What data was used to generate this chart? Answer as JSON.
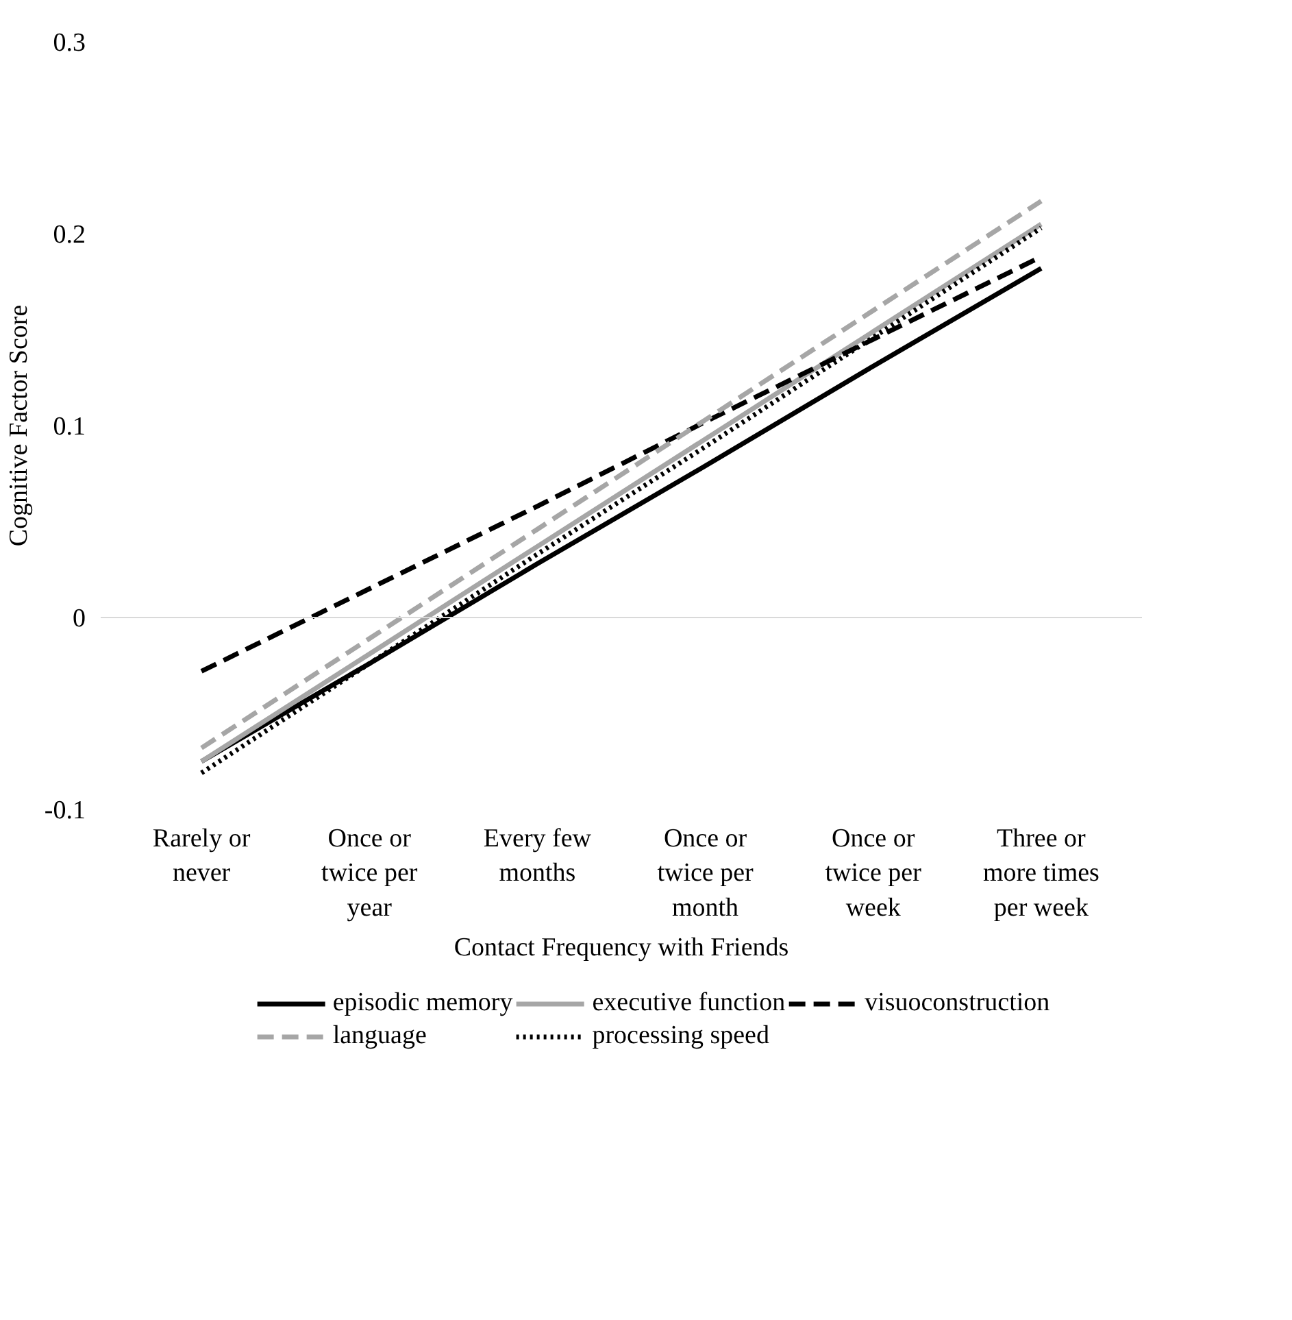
{
  "chart_data": {
    "type": "line",
    "xlabel": "Contact Frequency with Friends",
    "ylabel": "Cognitive Factor Score",
    "categories": [
      "Rarely or never",
      "Once or twice per year",
      "Every few months",
      "Once or twice per month",
      "Once or twice per week",
      "Three or more times per week"
    ],
    "ylim": [
      -0.1,
      0.3
    ],
    "yticks": [
      {
        "value": -0.1,
        "label": "-0.1"
      },
      0,
      0.1,
      0.2,
      0.3
    ],
    "grid": false,
    "legend": "bottom",
    "marker": "none",
    "ref_lines": [
      {
        "axis": "y",
        "value": 0,
        "color": "#d9d9d9"
      }
    ],
    "series": [
      {
        "name": "episodic memory",
        "color": "#000000",
        "line_style": "solid",
        "values": [
          -0.075,
          -0.024,
          0.028,
          0.079,
          0.131,
          0.182
        ]
      },
      {
        "name": "executive function",
        "color": "#a6a6a6",
        "line_style": "solid",
        "values": [
          -0.075,
          -0.019,
          0.037,
          0.093,
          0.149,
          0.205
        ]
      },
      {
        "name": "visuoconstruction",
        "color": "#000000",
        "line_style": "dashed",
        "values": [
          -0.028,
          0.015,
          0.058,
          0.102,
          0.145,
          0.188
        ]
      },
      {
        "name": "language",
        "color": "#a6a6a6",
        "line_style": "dashed",
        "values": [
          -0.068,
          -0.011,
          0.046,
          0.103,
          0.16,
          0.217
        ]
      },
      {
        "name": "processing speed",
        "color": "#000000",
        "line_style": "dotted",
        "values": [
          -0.081,
          -0.024,
          0.033,
          0.089,
          0.146,
          0.203
        ]
      }
    ]
  }
}
